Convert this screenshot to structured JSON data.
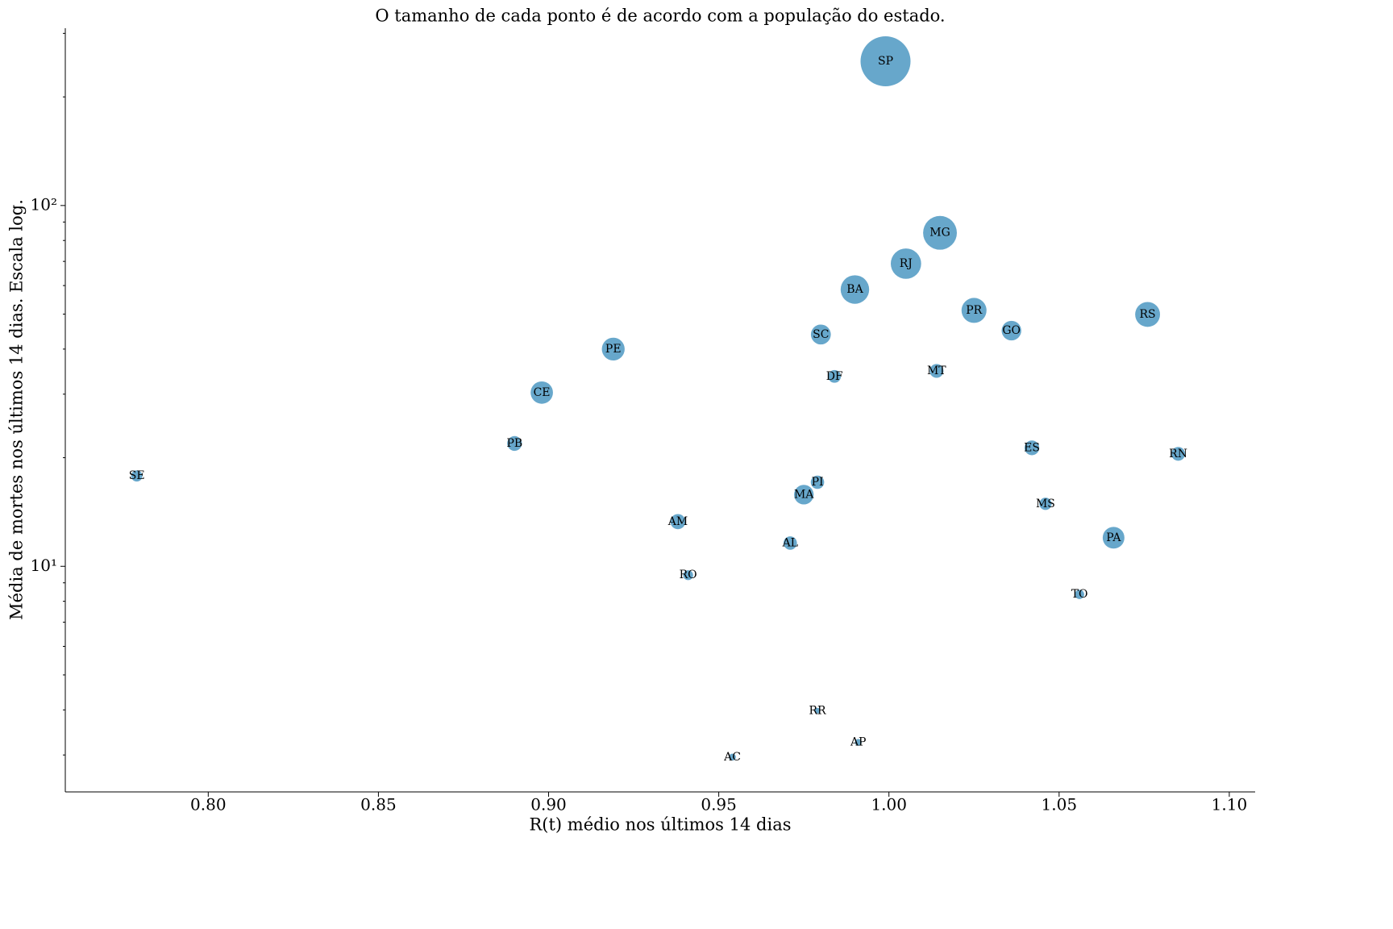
{
  "chart_data": {
    "type": "scatter",
    "title": "O tamanho de cada ponto é de acordo com a população do estado.",
    "xlabel": "R(t) médio nos últimos 14 dias",
    "ylabel": "Média de mortes nos últimos 14 dias. Escala log.",
    "yscale": "log",
    "color": "#5fa2c8",
    "labels": [
      "SP",
      "MG",
      "RJ",
      "BA",
      "PR",
      "RS",
      "GO",
      "SC",
      "PE",
      "MT",
      "DF",
      "CE",
      "PB",
      "ES",
      "RN",
      "SE",
      "PI",
      "MA",
      "MS",
      "AM",
      "PA",
      "AL",
      "RO",
      "TO",
      "RR",
      "AP",
      "AC"
    ],
    "x": [
      0.999,
      1.015,
      1.005,
      0.99,
      1.025,
      1.076,
      1.036,
      0.98,
      0.919,
      1.014,
      0.984,
      0.898,
      0.89,
      1.042,
      1.085,
      0.779,
      0.979,
      0.975,
      1.046,
      0.938,
      1.066,
      0.971,
      0.941,
      1.056,
      0.979,
      0.991,
      0.954
    ],
    "values": [
      251,
      84,
      69,
      58.5,
      51.2,
      49.9,
      45.0,
      43.9,
      40.0,
      34.8,
      33.6,
      30.3,
      21.9,
      21.3,
      20.5,
      17.8,
      17.1,
      15.8,
      14.9,
      13.3,
      12.0,
      11.6,
      9.45,
      8.36,
      3.98,
      3.25,
      2.96
    ],
    "sizes": [
      46,
      21,
      17,
      15,
      11.5,
      11.4,
      7.1,
      7.3,
      9.6,
      3.5,
      3.0,
      9.2,
      4.0,
      4.0,
      3.5,
      2.3,
      3.3,
      7.1,
      2.8,
      4.2,
      8.7,
      3.3,
      1.8,
      1.6,
      0.6,
      0.85,
      0.9
    ],
    "xlim": [
      0.758,
      1.1076
    ],
    "ylim": [
      2.37,
      310
    ],
    "xticks": [
      {
        "value": 0.8,
        "label": "0.80"
      },
      {
        "value": 0.85,
        "label": "0.85"
      },
      {
        "value": 0.9,
        "label": "0.90"
      },
      {
        "value": 0.95,
        "label": "0.95"
      },
      {
        "value": 1,
        "label": "1.00"
      },
      {
        "value": 1.05,
        "label": "1.05"
      },
      {
        "value": 1.1,
        "label": "1.10"
      }
    ],
    "yticks": [
      {
        "value": 10,
        "label": "10¹"
      },
      {
        "value": 100,
        "label": "10²"
      }
    ],
    "yminorticks": [
      3,
      4,
      5,
      6,
      7,
      8,
      9,
      20,
      30,
      40,
      50,
      60,
      70,
      80,
      90,
      200,
      300
    ]
  }
}
